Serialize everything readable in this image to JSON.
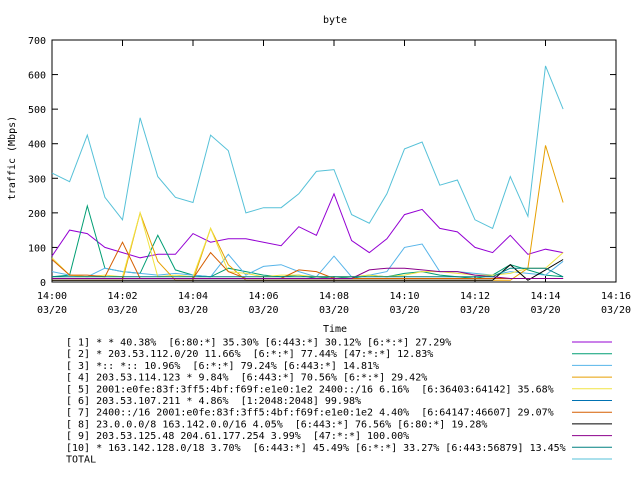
{
  "chart_data": {
    "type": "line",
    "title": "byte",
    "xlabel": "Time",
    "ylabel": "traffic (Mbps)",
    "ylim": [
      0,
      700
    ],
    "yticks": [
      0,
      100,
      200,
      300,
      400,
      500,
      600,
      700
    ],
    "xlim": [
      "14:00",
      "14:16"
    ],
    "xticks": [
      {
        "time": "14:00",
        "date": "03/20"
      },
      {
        "time": "14:02",
        "date": "03/20"
      },
      {
        "time": "14:04",
        "date": "03/20"
      },
      {
        "time": "14:06",
        "date": "03/20"
      },
      {
        "time": "14:08",
        "date": "03/20"
      },
      {
        "time": "14:10",
        "date": "03/20"
      },
      {
        "time": "14:12",
        "date": "03/20"
      },
      {
        "time": "14:14",
        "date": "03/20"
      },
      {
        "time": "14:16",
        "date": "03/20"
      }
    ],
    "x": [
      "14:00:00",
      "14:00:30",
      "14:01:00",
      "14:01:30",
      "14:02:00",
      "14:02:30",
      "14:03:00",
      "14:03:30",
      "14:04:00",
      "14:04:30",
      "14:05:00",
      "14:05:30",
      "14:06:00",
      "14:06:30",
      "14:07:00",
      "14:07:30",
      "14:08:00",
      "14:08:30",
      "14:09:00",
      "14:09:30",
      "14:10:00",
      "14:10:30",
      "14:11:00",
      "14:11:30",
      "14:12:00",
      "14:12:30",
      "14:13:00",
      "14:13:30",
      "14:14:00",
      "14:14:30"
    ],
    "grid": false,
    "legend_position": "bottom",
    "series": [
      {
        "name": "[ 1] * * 40.38%  [6:80:*] 35.30% [6:443:*] 30.12% [6:*:*] 27.29%",
        "color": "#9400d3",
        "values": [
          75,
          150,
          140,
          100,
          85,
          70,
          80,
          80,
          140,
          115,
          125,
          125,
          115,
          105,
          160,
          135,
          255,
          120,
          85,
          125,
          195,
          210,
          155,
          145,
          100,
          85,
          135,
          80,
          95,
          85
        ]
      },
      {
        "name": "[ 2] * 203.53.112.0/20 11.66%  [6:*:*] 77.44% [47:*:*] 12.83%",
        "color": "#009e73",
        "values": [
          15,
          20,
          220,
          40,
          30,
          25,
          135,
          35,
          20,
          15,
          40,
          30,
          20,
          15,
          20,
          10,
          15,
          10,
          20,
          15,
          25,
          30,
          20,
          15,
          10,
          20,
          50,
          35,
          20,
          15
        ]
      },
      {
        "name": "[ 3] *:: *:: 10.96%  [6:*:*] 79.24% [6:443:*] 14.81%",
        "color": "#56b4e9",
        "values": [
          30,
          20,
          15,
          40,
          30,
          25,
          20,
          25,
          20,
          15,
          80,
          20,
          45,
          50,
          30,
          15,
          75,
          15,
          20,
          30,
          100,
          110,
          30,
          30,
          25,
          20,
          30,
          25,
          20,
          60
        ]
      },
      {
        "name": "[ 4] 203.53.114.123 * 9.84%  [6:443:*] 70.56% [6:*:*] 29.42%",
        "color": "#e69f00",
        "values": [
          5,
          5,
          5,
          5,
          5,
          200,
          60,
          5,
          5,
          155,
          50,
          5,
          5,
          5,
          5,
          5,
          5,
          5,
          5,
          5,
          5,
          5,
          5,
          5,
          5,
          5,
          5,
          40,
          395,
          230
        ]
      },
      {
        "name": "[ 5] 2001:e0fe:83f:3ff5:4bf:f69f:e1e0:1e2 2400::/16 6.16%  [6:36403:64142] 35.68%",
        "color": "#f0e442",
        "values": [
          70,
          20,
          15,
          20,
          15,
          200,
          15,
          20,
          15,
          155,
          30,
          25,
          15,
          20,
          20,
          15,
          15,
          15,
          20,
          15,
          20,
          30,
          30,
          25,
          20,
          20,
          25,
          40,
          40,
          85
        ]
      },
      {
        "name": "[ 6] 203.53.107.211 * 4.86%  [1:2048:2048] 99.98%",
        "color": "#0072b2",
        "values": [
          10,
          10,
          10,
          10,
          10,
          10,
          10,
          10,
          10,
          10,
          10,
          10,
          10,
          10,
          10,
          10,
          10,
          10,
          10,
          10,
          10,
          10,
          10,
          10,
          10,
          10,
          10,
          10,
          10,
          10
        ]
      },
      {
        "name": "[ 7] 2400::/16 2001:e0fe:83f:3ff5:4bf:f69f:e1e0:1e2 4.40%  [6:64147:46607] 29.07%",
        "color": "#d55e00",
        "values": [
          65,
          20,
          20,
          15,
          115,
          10,
          10,
          10,
          10,
          85,
          30,
          10,
          10,
          10,
          35,
          30,
          10,
          10,
          10,
          10,
          10,
          10,
          10,
          10,
          10,
          10,
          10,
          10,
          10,
          10
        ]
      },
      {
        "name": "[ 8] 23.0.0.0/8 163.142.0.0/16 4.05%  [6:443:*] 76.56% [6:80:*] 19.28%",
        "color": "#000000",
        "values": [
          5,
          5,
          5,
          5,
          5,
          5,
          5,
          5,
          5,
          5,
          5,
          5,
          5,
          5,
          5,
          5,
          5,
          5,
          5,
          5,
          5,
          5,
          5,
          5,
          5,
          5,
          50,
          5,
          35,
          65
        ]
      },
      {
        "name": "[ 9] 203.53.125.48 204.61.177.254 3.99%  [47:*:*] 100.00%",
        "color": "#8b008b",
        "values": [
          10,
          10,
          10,
          10,
          10,
          10,
          10,
          10,
          10,
          10,
          10,
          10,
          10,
          10,
          10,
          10,
          10,
          10,
          35,
          40,
          40,
          35,
          30,
          30,
          20,
          15,
          10,
          10,
          10,
          10
        ]
      },
      {
        "name": "[10] * 163.142.128.0/18 3.70%  [6:443:*] 45.49% [6:*:*] 33.27% [6:443:56879] 13.45%",
        "color": "#008080",
        "values": [
          15,
          15,
          15,
          15,
          15,
          15,
          15,
          15,
          15,
          15,
          15,
          15,
          15,
          15,
          15,
          15,
          15,
          15,
          15,
          15,
          15,
          15,
          15,
          15,
          15,
          15,
          40,
          40,
          40,
          15
        ]
      },
      {
        "name": "TOTAL",
        "color": "#56c1d8",
        "values": [
          315,
          290,
          425,
          245,
          180,
          475,
          305,
          245,
          230,
          425,
          380,
          200,
          215,
          215,
          255,
          320,
          325,
          195,
          170,
          255,
          385,
          405,
          280,
          295,
          180,
          155,
          305,
          190,
          625,
          500
        ]
      }
    ]
  }
}
